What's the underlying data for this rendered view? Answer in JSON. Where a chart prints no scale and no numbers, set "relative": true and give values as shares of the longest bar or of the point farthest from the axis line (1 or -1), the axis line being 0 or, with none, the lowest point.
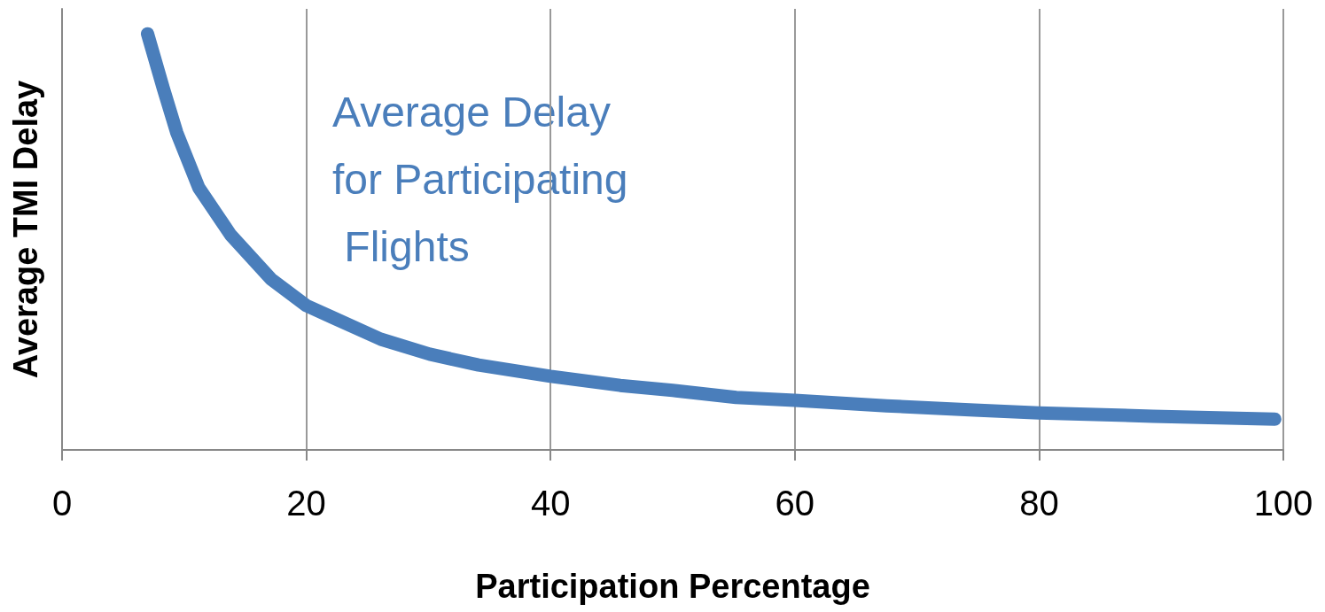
{
  "chart_data": {
    "type": "line",
    "xlabel": "Participation Percentage",
    "ylabel": "Average TMI Delay",
    "x": [
      7,
      8.3,
      9.4,
      11.2,
      13.8,
      17.1,
      20,
      22.1,
      26.1,
      30.1,
      34.1,
      40,
      45.7,
      50,
      55.2,
      60,
      67.5,
      74.7,
      80,
      89.3,
      99.3
    ],
    "series": [
      {
        "color": "#4a7ebb",
        "values": [
          1.0,
          0.868,
          0.762,
          0.63,
          0.517,
          0.411,
          0.347,
          0.319,
          0.266,
          0.23,
          0.204,
          0.177,
          0.155,
          0.143,
          0.126,
          0.119,
          0.106,
          0.096,
          0.089,
          0.081,
          0.074
        ]
      }
    ],
    "relative": true,
    "xlim": [
      0,
      100
    ],
    "xticks": [
      0,
      20,
      40,
      60,
      80,
      100
    ],
    "grid": "x",
    "line_style": "solid",
    "annotations": [
      "Average Delay for Participating Flights"
    ]
  }
}
